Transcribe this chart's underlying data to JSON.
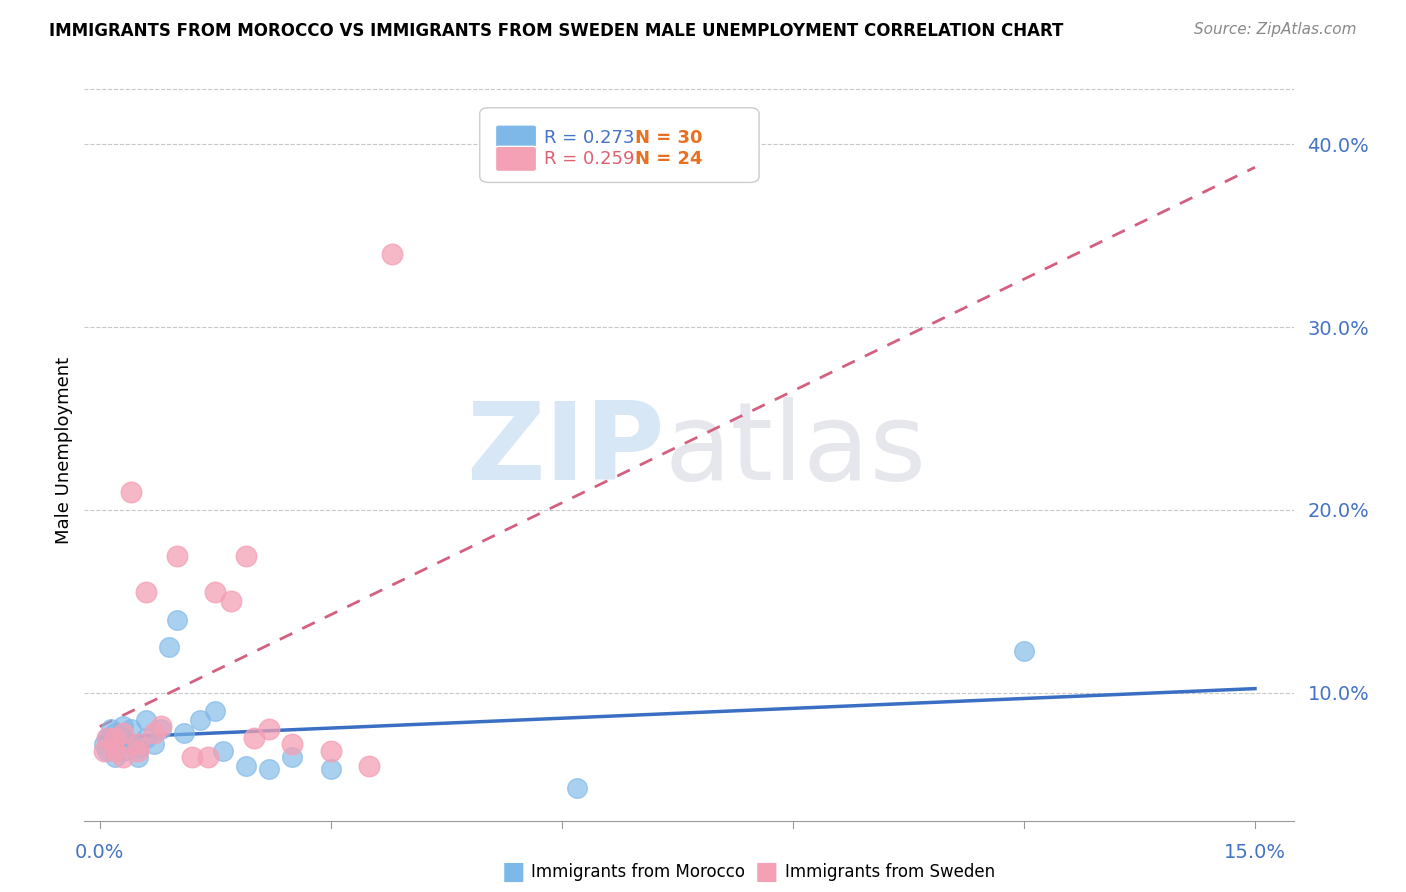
{
  "title": "IMMIGRANTS FROM MOROCCO VS IMMIGRANTS FROM SWEDEN MALE UNEMPLOYMENT CORRELATION CHART",
  "source": "Source: ZipAtlas.com",
  "ylabel": "Male Unemployment",
  "morocco_color": "#7db8e8",
  "sweden_color": "#f4a0b5",
  "trend_morocco_color": "#3a6fc4",
  "trend_sweden_color": "#d46080",
  "ytick_labels": [
    "10.0%",
    "20.0%",
    "30.0%",
    "40.0%"
  ],
  "ytick_values": [
    0.1,
    0.2,
    0.3,
    0.4
  ],
  "xlim": [
    -0.002,
    0.155
  ],
  "ylim": [
    0.03,
    0.435
  ],
  "morocco_scatter_x": [
    0.0005,
    0.001,
    0.001,
    0.0015,
    0.002,
    0.002,
    0.002,
    0.003,
    0.003,
    0.003,
    0.004,
    0.004,
    0.005,
    0.005,
    0.006,
    0.006,
    0.007,
    0.008,
    0.009,
    0.01,
    0.011,
    0.013,
    0.015,
    0.016,
    0.019,
    0.022,
    0.025,
    0.03,
    0.062,
    0.12
  ],
  "morocco_scatter_y": [
    0.072,
    0.068,
    0.075,
    0.08,
    0.065,
    0.072,
    0.078,
    0.068,
    0.075,
    0.082,
    0.072,
    0.08,
    0.065,
    0.07,
    0.075,
    0.085,
    0.072,
    0.08,
    0.125,
    0.14,
    0.078,
    0.085,
    0.09,
    0.068,
    0.06,
    0.058,
    0.065,
    0.058,
    0.048,
    0.123
  ],
  "sweden_scatter_x": [
    0.0005,
    0.001,
    0.002,
    0.002,
    0.003,
    0.003,
    0.004,
    0.005,
    0.005,
    0.006,
    0.007,
    0.008,
    0.01,
    0.012,
    0.014,
    0.015,
    0.017,
    0.019,
    0.02,
    0.022,
    0.025,
    0.03,
    0.035,
    0.038
  ],
  "sweden_scatter_y": [
    0.068,
    0.075,
    0.068,
    0.075,
    0.065,
    0.078,
    0.21,
    0.072,
    0.068,
    0.155,
    0.078,
    0.082,
    0.175,
    0.065,
    0.065,
    0.155,
    0.15,
    0.175,
    0.075,
    0.08,
    0.072,
    0.068,
    0.06,
    0.34
  ],
  "legend_r1": "R = 0.273",
  "legend_n1": "N = 30",
  "legend_r2": "R = 0.259",
  "legend_n2": "N = 24",
  "legend_label1": "Immigrants from Morocco",
  "legend_label2": "Immigrants from Sweden"
}
